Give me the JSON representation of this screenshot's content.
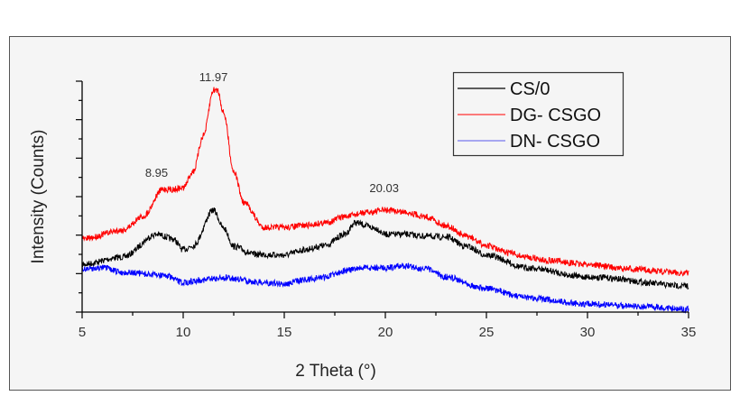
{
  "chart_data": {
    "type": "line",
    "title": "",
    "xlabel": "2 Theta (°)",
    "ylabel": "Intensity (Counts)",
    "xlim": [
      5,
      35
    ],
    "ylim": [
      0,
      6
    ],
    "x_ticks": [
      5,
      10,
      15,
      20,
      25,
      30,
      35
    ],
    "y_tick_labels_shown": false,
    "grid": false,
    "legend_position": "top-right",
    "series": [
      {
        "name": "CS/0",
        "color": "#000000",
        "x": [
          5,
          7,
          8.7,
          9.5,
          10,
          10.5,
          11.5,
          12,
          12.5,
          13.5,
          15,
          16,
          17,
          18,
          18.5,
          19.5,
          20,
          21,
          22,
          23,
          24,
          25,
          27,
          30,
          35
        ],
        "y": [
          1.24,
          1.43,
          2.02,
          1.9,
          1.62,
          1.73,
          2.65,
          2.18,
          1.71,
          1.5,
          1.48,
          1.62,
          1.73,
          2.02,
          2.32,
          2.18,
          2.02,
          2.02,
          1.97,
          1.95,
          1.71,
          1.48,
          1.15,
          0.91,
          0.68
        ]
      },
      {
        "name": "DG- CSGO",
        "color": "#ff0000",
        "x": [
          5,
          7,
          8,
          9,
          9.5,
          10,
          10.5,
          11,
          11.5,
          11.7,
          12,
          12.5,
          13,
          14,
          15,
          16,
          17,
          18,
          19,
          20,
          21,
          22,
          23,
          24,
          25,
          26,
          27,
          28,
          30,
          32,
          35
        ],
        "y": [
          1.9,
          2.13,
          2.48,
          3.19,
          3.19,
          3.23,
          3.66,
          4.59,
          5.77,
          5.77,
          5.18,
          3.66,
          2.84,
          2.2,
          2.2,
          2.25,
          2.32,
          2.48,
          2.58,
          2.65,
          2.6,
          2.48,
          2.25,
          1.97,
          1.73,
          1.55,
          1.43,
          1.34,
          1.24,
          1.12,
          1.01
        ]
      },
      {
        "name": "DN- CSGO",
        "color": "#0000ff",
        "x": [
          5,
          6,
          7,
          9,
          10,
          11,
          12,
          14,
          15,
          16,
          17,
          18,
          19,
          20,
          21,
          22,
          23,
          25,
          27,
          30,
          33,
          35
        ],
        "y": [
          1.12,
          1.15,
          1.03,
          0.96,
          0.77,
          0.84,
          0.89,
          0.77,
          0.73,
          0.84,
          0.91,
          1.08,
          1.15,
          1.15,
          1.2,
          1.12,
          0.91,
          0.61,
          0.37,
          0.21,
          0.14,
          0.07
        ]
      }
    ],
    "annotations": [
      {
        "text": "11.97",
        "x": 11.5,
        "y": 5.77
      },
      {
        "text": "8.95",
        "x": 8.95,
        "y": 3.19
      },
      {
        "text": "20.03",
        "x": 20.03,
        "y": 2.65
      }
    ]
  }
}
